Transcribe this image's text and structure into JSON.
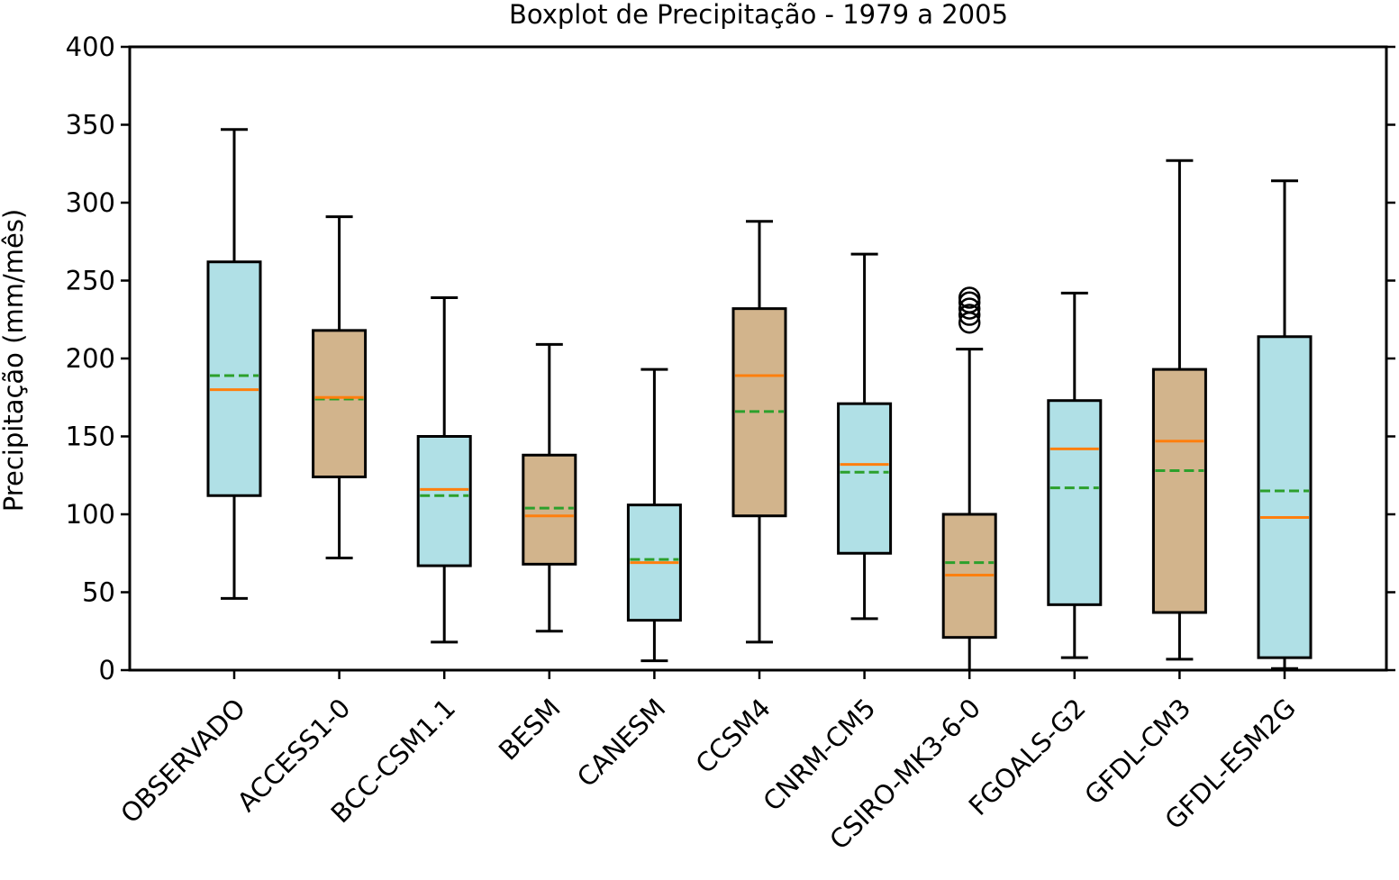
{
  "chart_data": {
    "type": "boxplot",
    "title": "Boxplot de Precipitação - 1979 a 2005",
    "xlabel": "",
    "ylabel": "Precipitação (mm/mês)",
    "ylim": [
      0,
      400
    ],
    "yticks": [
      "0",
      "50",
      "100",
      "150",
      "200",
      "250",
      "300",
      "350",
      "400"
    ],
    "ytick_values": [
      0,
      50,
      100,
      150,
      200,
      250,
      300,
      350,
      400
    ],
    "grid": false,
    "legend": "none",
    "median_line": {
      "color": "#ff7f0e",
      "style": "solid"
    },
    "mean_line": {
      "color": "#2ca02c",
      "style": "dashed"
    },
    "categories": [
      "OBSERVADO",
      "ACCESS1-0",
      "BCC-CSM1.1",
      "BESM",
      "CANESM",
      "CCSM4",
      "CNRM-CM5",
      "CSIRO-MK3-6-0",
      "FGOALS-G2",
      "GFDL-CM3",
      "GFDL-ESM2G"
    ],
    "boxes": [
      {
        "label": "OBSERVADO",
        "whisker_low": 46,
        "q1": 112,
        "median": 180,
        "mean": 189,
        "q3": 262,
        "whisker_high": 347,
        "outliers": [],
        "color": "#b0e0e6"
      },
      {
        "label": "ACCESS1-0",
        "whisker_low": 72,
        "q1": 124,
        "median": 175,
        "mean": 174,
        "q3": 218,
        "whisker_high": 291,
        "outliers": [],
        "color": "#d2b48c"
      },
      {
        "label": "BCC-CSM1.1",
        "whisker_low": 18,
        "q1": 67,
        "median": 116,
        "mean": 112,
        "q3": 150,
        "whisker_high": 239,
        "outliers": [],
        "color": "#b0e0e6"
      },
      {
        "label": "BESM",
        "whisker_low": 25,
        "q1": 68,
        "median": 99,
        "mean": 104,
        "q3": 138,
        "whisker_high": 209,
        "outliers": [],
        "color": "#d2b48c"
      },
      {
        "label": "CANESM",
        "whisker_low": 6,
        "q1": 32,
        "median": 69,
        "mean": 71,
        "q3": 106,
        "whisker_high": 193,
        "outliers": [],
        "color": "#b0e0e6"
      },
      {
        "label": "CCSM4",
        "whisker_low": 18,
        "q1": 99,
        "median": 189,
        "mean": 166,
        "q3": 232,
        "whisker_high": 288,
        "outliers": [],
        "color": "#d2b48c"
      },
      {
        "label": "CNRM-CM5",
        "whisker_low": 33,
        "q1": 75,
        "median": 132,
        "mean": 127,
        "q3": 171,
        "whisker_high": 267,
        "outliers": [],
        "color": "#b0e0e6"
      },
      {
        "label": "CSIRO-MK3-6-0",
        "whisker_low": 0,
        "q1": 21,
        "median": 61,
        "mean": 69,
        "q3": 100,
        "whisker_high": 206,
        "outliers": [
          223,
          228,
          232,
          236,
          239
        ],
        "color": "#d2b48c"
      },
      {
        "label": "FGOALS-G2",
        "whisker_low": 8,
        "q1": 42,
        "median": 142,
        "mean": 117,
        "q3": 173,
        "whisker_high": 242,
        "outliers": [],
        "color": "#b0e0e6"
      },
      {
        "label": "GFDL-CM3",
        "whisker_low": 7,
        "q1": 37,
        "median": 147,
        "mean": 128,
        "q3": 193,
        "whisker_high": 327,
        "outliers": [],
        "color": "#d2b48c"
      },
      {
        "label": "GFDL-ESM2G",
        "whisker_low": 1,
        "q1": 8,
        "median": 98,
        "mean": 115,
        "q3": 214,
        "whisker_high": 314,
        "outliers": [],
        "color": "#b0e0e6"
      }
    ]
  }
}
